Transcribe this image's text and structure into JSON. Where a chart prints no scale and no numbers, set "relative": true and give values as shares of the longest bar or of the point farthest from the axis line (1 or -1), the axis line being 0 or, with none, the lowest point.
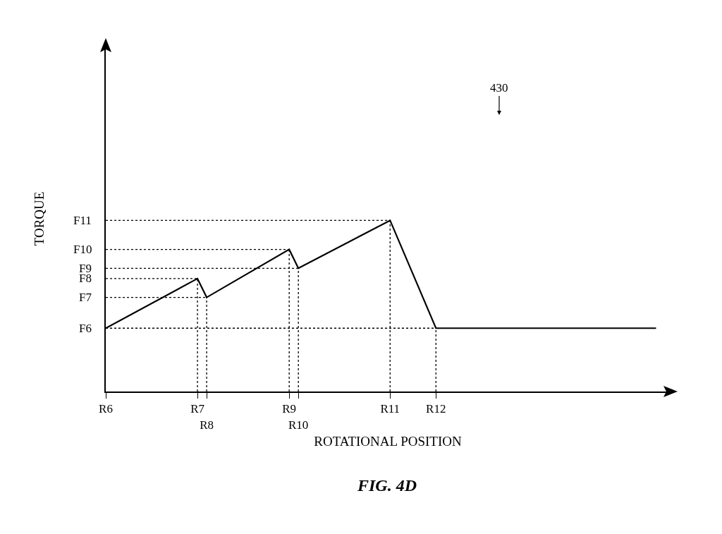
{
  "chart_data": {
    "type": "line",
    "xlabel": "ROTATIONAL POSITION",
    "ylabel": "TORQUE",
    "relative": true,
    "grid": false,
    "marker": "none",
    "categories": [
      "R6",
      null,
      null,
      null,
      null,
      null,
      null,
      null,
      null,
      null,
      "R7",
      "R8",
      null,
      null,
      null,
      null,
      null,
      null,
      null,
      null,
      "R9",
      "R10",
      null,
      null,
      null,
      null,
      null,
      null,
      null,
      null,
      null,
      "R11",
      null,
      null,
      null,
      null,
      "R12",
      null,
      null,
      null,
      null,
      null,
      null,
      null,
      null,
      null,
      null,
      null,
      null,
      null,
      null,
      null,
      null,
      null,
      null,
      null,
      null,
      null,
      null,
      null,
      null
    ],
    "series": [
      {
        "color": "#000000",
        "line_style": "solid",
        "values": [
          0.37,
          null,
          null,
          null,
          null,
          null,
          null,
          null,
          null,
          null,
          0.66,
          0.55,
          null,
          null,
          null,
          null,
          null,
          null,
          null,
          null,
          0.83,
          0.72,
          null,
          null,
          null,
          null,
          null,
          null,
          null,
          null,
          null,
          1,
          null,
          null,
          null,
          null,
          0.37,
          null,
          null,
          null,
          null,
          null,
          null,
          null,
          null,
          null,
          null,
          null,
          null,
          null,
          null,
          null,
          null,
          null,
          null,
          null,
          null,
          null,
          null,
          null,
          0.37
        ]
      },
      {
        "color": "#000000",
        "line_style": "dotted",
        "x": [
          "R6",
          "R12"
        ],
        "values": [
          0.37,
          0.37
        ]
      },
      {
        "color": "#000000",
        "line_style": "dotted",
        "x": [
          "R6",
          "R8"
        ],
        "values": [
          0.55,
          0.55
        ]
      },
      {
        "color": "#000000",
        "line_style": "dotted",
        "x": [
          "R6",
          "R7"
        ],
        "values": [
          0.66,
          0.66
        ]
      },
      {
        "color": "#000000",
        "line_style": "dotted",
        "x": [
          "R6",
          "R10"
        ],
        "values": [
          0.72,
          0.72
        ]
      },
      {
        "color": "#000000",
        "line_style": "dotted",
        "x": [
          "R6",
          "R9"
        ],
        "values": [
          0.83,
          0.83
        ]
      },
      {
        "color": "#000000",
        "line_style": "dotted",
        "x": [
          "R6",
          "R11"
        ],
        "values": [
          1,
          1
        ]
      },
      {
        "color": "#000000",
        "line_style": "dotted",
        "x": [
          "R7",
          "R7"
        ],
        "values": [
          0,
          0.66
        ]
      },
      {
        "color": "#000000",
        "line_style": "dotted",
        "x": [
          "R8",
          "R8"
        ],
        "values": [
          0,
          0.55
        ]
      },
      {
        "color": "#000000",
        "line_style": "dotted",
        "x": [
          "R9",
          "R9"
        ],
        "values": [
          0,
          0.83
        ]
      },
      {
        "color": "#000000",
        "line_style": "dotted",
        "x": [
          "R10",
          "R10"
        ],
        "values": [
          0,
          0.72
        ]
      },
      {
        "color": "#000000",
        "line_style": "dotted",
        "x": [
          "R11",
          "R11"
        ],
        "values": [
          0,
          1
        ]
      },
      {
        "color": "#000000",
        "line_style": "dotted",
        "x": [
          "R12",
          "R12"
        ],
        "values": [
          0,
          0.37
        ]
      }
    ],
    "annotations": [
      "430",
      "FIG. 4D",
      {
        "text": "F6",
        "x": "R6",
        "y": 0.37
      },
      {
        "text": "F7",
        "x": "R6",
        "y": 0.55
      },
      {
        "text": "F8",
        "x": "R6",
        "y": 0.66
      },
      {
        "text": "F9",
        "x": "R6",
        "y": 0.72
      },
      {
        "text": "F10",
        "x": "R6",
        "y": 0.83
      },
      {
        "text": "F11",
        "x": "R6",
        "y": 1
      }
    ]
  }
}
